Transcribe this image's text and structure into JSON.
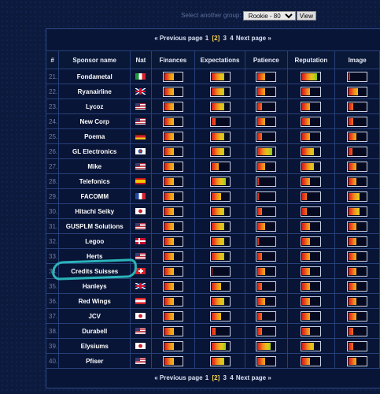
{
  "group_select": {
    "label": "Select another group:",
    "selected": "Rookie - 80",
    "button": "View"
  },
  "pager": {
    "prev": "« Previous page",
    "pages": [
      "1",
      "[2]",
      "3",
      "4"
    ],
    "current_index": 1,
    "next": "Next page »"
  },
  "columns": [
    "#",
    "Sponsor name",
    "Nat",
    "Finances",
    "Expectations",
    "Patience",
    "Reputation",
    "Image"
  ],
  "rows": [
    {
      "num": "21.",
      "name": "Fondametal",
      "flag": "it",
      "ratings": [
        0.55,
        0.75,
        0.45,
        0.85,
        0.1
      ]
    },
    {
      "num": "22.",
      "name": "Ryanairline",
      "flag": "gb",
      "ratings": [
        0.55,
        0.75,
        0.45,
        0.45,
        0.55
      ]
    },
    {
      "num": "23.",
      "name": "Lycoz",
      "flag": "us",
      "ratings": [
        0.55,
        0.75,
        0.25,
        0.45,
        0.25
      ]
    },
    {
      "num": "24.",
      "name": "New Corp",
      "flag": "us",
      "ratings": [
        0.55,
        0.25,
        0.45,
        0.45,
        0.25
      ]
    },
    {
      "num": "25.",
      "name": "Poema",
      "flag": "de",
      "ratings": [
        0.55,
        0.75,
        0.25,
        0.45,
        0.45
      ]
    },
    {
      "num": "26.",
      "name": "GL Electronics",
      "flag": "kr",
      "ratings": [
        0.55,
        0.75,
        0.85,
        0.65,
        0.2
      ]
    },
    {
      "num": "27.",
      "name": "Mike",
      "flag": "us",
      "ratings": [
        0.55,
        0.45,
        0.45,
        0.65,
        0.45
      ]
    },
    {
      "num": "28.",
      "name": "Telefonics",
      "flag": "es",
      "ratings": [
        0.55,
        0.85,
        0.1,
        0.45,
        0.45
      ]
    },
    {
      "num": "29.",
      "name": "FACOMM",
      "flag": "fr",
      "ratings": [
        0.55,
        0.55,
        0.1,
        0.25,
        0.65
      ]
    },
    {
      "num": "30.",
      "name": "Hitachi Seiky",
      "flag": "jp",
      "ratings": [
        0.55,
        0.75,
        0.25,
        0.25,
        0.65
      ]
    },
    {
      "num": "31.",
      "name": "GUSPLM Solutions",
      "flag": "us",
      "ratings": [
        0.55,
        0.75,
        0.45,
        0.45,
        0.45
      ]
    },
    {
      "num": "32.",
      "name": "Legoo",
      "flag": "dk",
      "ratings": [
        0.55,
        0.75,
        0.1,
        0.45,
        0.45
      ]
    },
    {
      "num": "33.",
      "name": "Herts",
      "flag": "us",
      "ratings": [
        0.55,
        0.75,
        0.25,
        0.45,
        0.45
      ]
    },
    {
      "num": "34.",
      "name": "Credits Suisses",
      "flag": "ch",
      "ratings": [
        0.55,
        0.05,
        0.45,
        0.45,
        0.45
      ]
    },
    {
      "num": "35.",
      "name": "Hanleys",
      "flag": "gb",
      "ratings": [
        0.55,
        0.55,
        0.25,
        0.45,
        0.45
      ]
    },
    {
      "num": "36.",
      "name": "Red Wings",
      "flag": "at",
      "ratings": [
        0.55,
        0.75,
        0.45,
        0.45,
        0.45
      ]
    },
    {
      "num": "37.",
      "name": "JCV",
      "flag": "jp",
      "ratings": [
        0.55,
        0.55,
        0.25,
        0.45,
        0.45
      ]
    },
    {
      "num": "38.",
      "name": "Durabell",
      "flag": "us",
      "ratings": [
        0.55,
        0.25,
        0.25,
        0.45,
        0.25
      ]
    },
    {
      "num": "39.",
      "name": "Elysiums",
      "flag": "jp",
      "ratings": [
        0.55,
        0.85,
        0.75,
        0.65,
        0.25
      ]
    },
    {
      "num": "40.",
      "name": "Pfiser",
      "flag": "us",
      "ratings": [
        0.55,
        0.75,
        0.45,
        0.45,
        0.45
      ]
    }
  ],
  "rating_keys": [
    "finances",
    "expectations",
    "patience",
    "reputation",
    "image"
  ],
  "colors": {
    "background": "#0c1a3e",
    "accent_current_page": "#ffd84a",
    "annotation_circle": "#2ab3b8"
  }
}
